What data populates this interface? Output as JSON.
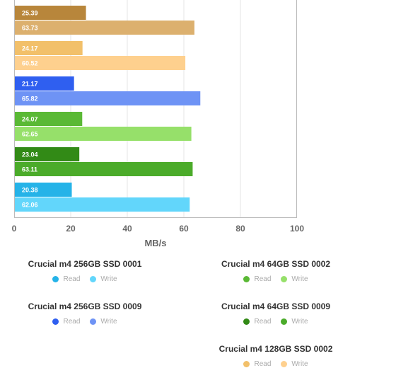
{
  "chart_data": {
    "type": "bar",
    "orientation": "horizontal",
    "xlabel": "MB/s",
    "xlim": [
      0,
      100
    ],
    "xticks": [
      "0",
      "20",
      "40",
      "60",
      "80",
      "100"
    ],
    "grid": true,
    "legend_placement": "bottom",
    "groups": [
      {
        "name": "Crucial m4 64GB SSD 0002",
        "read": 25.39,
        "write": 63.73,
        "read_color": "#b8863b",
        "write_color": "#dcb06e"
      },
      {
        "name": "Crucial m4 128GB SSD 0002",
        "read": 24.17,
        "write": 60.52,
        "read_color": "#f2c06a",
        "write_color": "#fed08e"
      },
      {
        "name": "Crucial m4 256GB SSD 0009",
        "read": 21.17,
        "write": 65.82,
        "read_color": "#2f5ff0",
        "write_color": "#6e93f5"
      },
      {
        "name": "Crucial m4 64GB SSD 0002",
        "read": 24.07,
        "write": 62.65,
        "read_color": "#5ab935",
        "write_color": "#96e06a"
      },
      {
        "name": "Crucial m4 64GB SSD 0009",
        "read": 23.04,
        "write": 63.11,
        "read_color": "#328a16",
        "write_color": "#4bab2a"
      },
      {
        "name": "Crucial m4 256GB SSD 0001",
        "read": 20.38,
        "write": 62.06,
        "read_color": "#25b3e8",
        "write_color": "#62d6fb"
      }
    ]
  },
  "legend": {
    "read_label": "Read",
    "write_label": "Write",
    "entries": [
      {
        "title": "Crucial m4 256GB SSD 0001",
        "read_color": "#25b3e8",
        "write_color": "#62d6fb"
      },
      {
        "title": "Crucial m4 64GB SSD 0002",
        "read_color": "#5ab935",
        "write_color": "#96e06a"
      },
      {
        "title": "Crucial m4 256GB SSD 0009",
        "read_color": "#2f5ff0",
        "write_color": "#6e93f5"
      },
      {
        "title": "Crucial m4 64GB SSD 0009",
        "read_color": "#328a16",
        "write_color": "#4bab2a"
      },
      {
        "title": "Crucial m4 128GB SSD 0002",
        "read_color": "#f2c06a",
        "write_color": "#fed08e"
      }
    ]
  }
}
